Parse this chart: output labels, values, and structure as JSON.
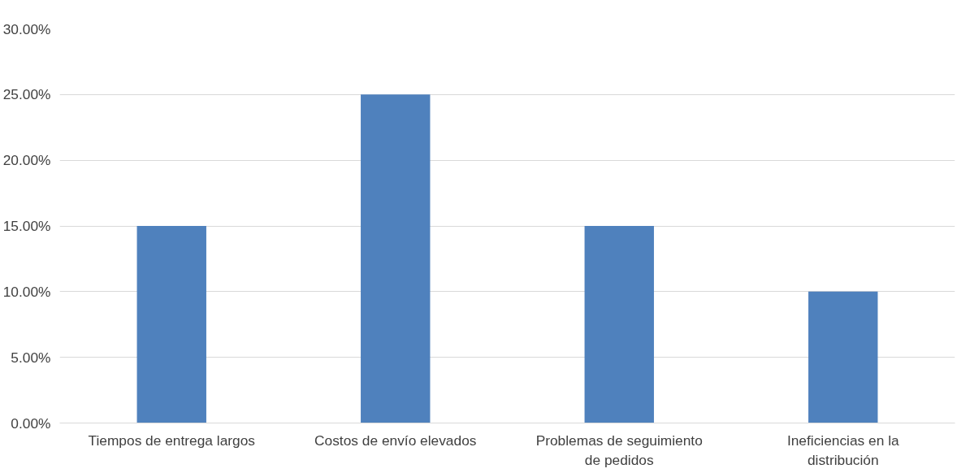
{
  "chart_data": {
    "type": "bar",
    "categories": [
      "Tiempos de entrega largos",
      "Costos de envío elevados",
      "Problemas de seguimiento de pedidos",
      "Ineficiencias en la distribución"
    ],
    "values": [
      15,
      25,
      15,
      10
    ],
    "color": "#4f81bd",
    "ylim": [
      0,
      30
    ],
    "yticks": [
      {
        "value": 0,
        "label": "0.00%"
      },
      {
        "value": 5,
        "label": "5.00%"
      },
      {
        "value": 10,
        "label": "10.00%"
      },
      {
        "value": 15,
        "label": "15.00%"
      },
      {
        "value": 20,
        "label": "20.00%"
      },
      {
        "value": 25,
        "label": "25.00%"
      },
      {
        "value": 30,
        "label": "30.00%"
      }
    ],
    "grid": "y"
  }
}
